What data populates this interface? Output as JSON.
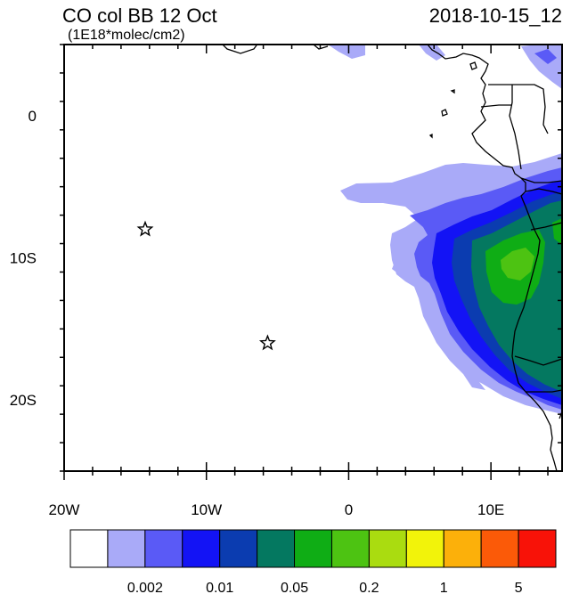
{
  "title": "CO col BB 12 Oct",
  "subtitle": "(1E18*molec/cm2)",
  "timestamp": "2018-10-15_12",
  "axes": {
    "x_ticks": [
      {
        "value": -20,
        "label": "20W"
      },
      {
        "value": -10,
        "label": "10W"
      },
      {
        "value": 0,
        "label": "0"
      },
      {
        "value": 10,
        "label": "10E"
      }
    ],
    "y_ticks": [
      {
        "value": 0,
        "label": "0"
      },
      {
        "value": -10,
        "label": "10S"
      },
      {
        "value": -20,
        "label": "20S"
      }
    ],
    "lon_range": [
      -20,
      15
    ],
    "lat_range": [
      -25,
      5
    ]
  },
  "markers": [
    {
      "name": "star-marker-1",
      "lon": -14.3,
      "lat": -8.0
    },
    {
      "name": "star-marker-2",
      "lon": -5.7,
      "lat": -16.0
    }
  ],
  "legend": {
    "colors": [
      "#ffffff",
      "#a9aaf8",
      "#5a5af6",
      "#1313f5",
      "#0b3cb0",
      "#047860",
      "#0fad15",
      "#4dc312",
      "#aadc10",
      "#f2f30a",
      "#fcb00a",
      "#fb5a08",
      "#f81208"
    ],
    "labels": [
      {
        "boundary": 2,
        "text": "0.002"
      },
      {
        "boundary": 4,
        "text": "0.01"
      },
      {
        "boundary": 6,
        "text": "0.05"
      },
      {
        "boundary": 8,
        "text": "0.2"
      },
      {
        "boundary": 10,
        "text": "1"
      },
      {
        "boundary": 12,
        "text": "5"
      }
    ]
  }
}
